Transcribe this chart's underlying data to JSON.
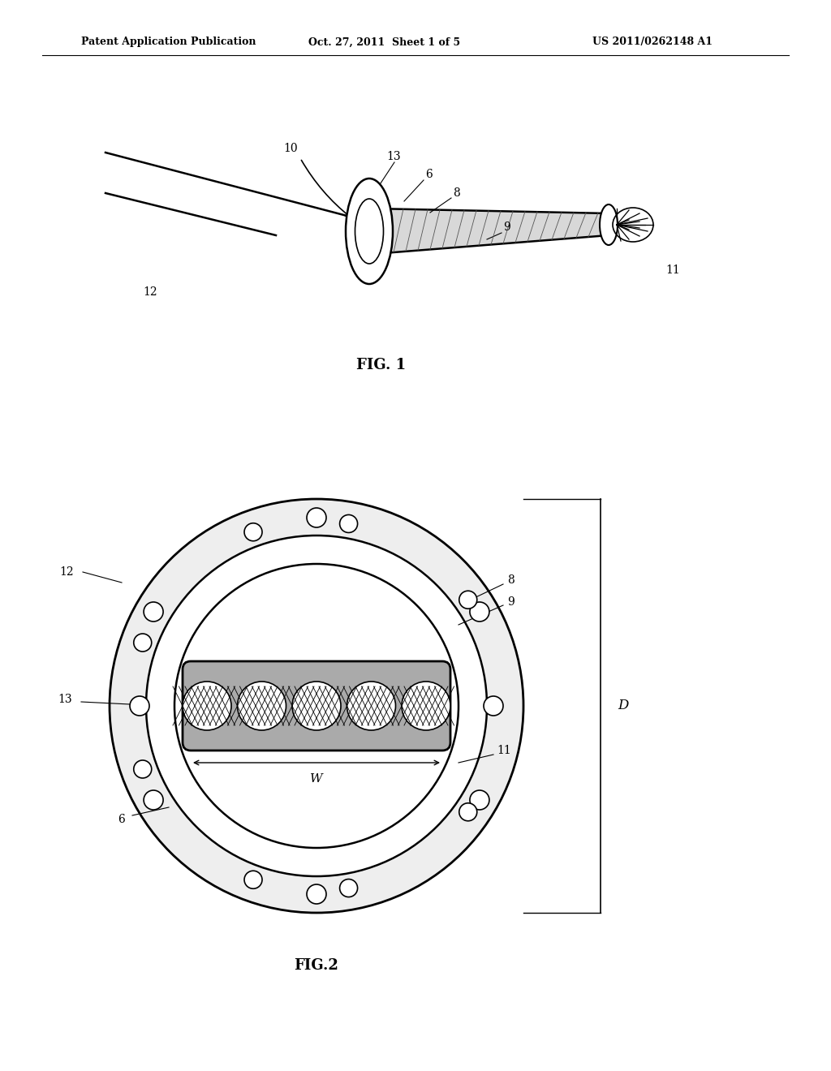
{
  "bg_color": "#ffffff",
  "line_color": "#000000",
  "header_text": "Patent Application Publication",
  "header_date": "Oct. 27, 2011  Sheet 1 of 5",
  "header_patent": "US 2011/0262148 A1",
  "fig1_label": "FIG. 1",
  "fig2_label": "FIG.2"
}
